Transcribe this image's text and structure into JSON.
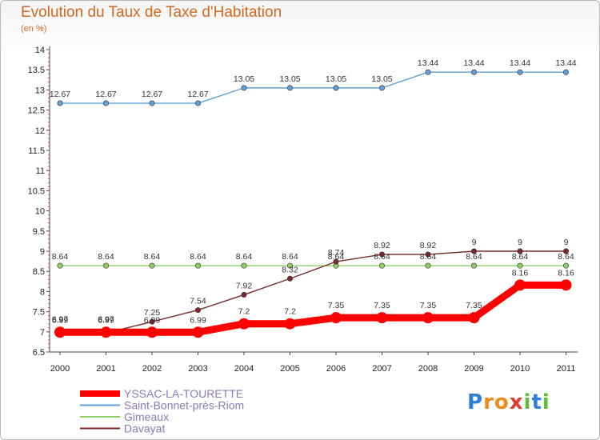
{
  "chart_data": {
    "type": "line",
    "title": "Evolution du Taux de Taxe d'Habitation",
    "subtitle": "(en %)",
    "x": [
      "2000",
      "2001",
      "2002",
      "2003",
      "2004",
      "2005",
      "2006",
      "2007",
      "2008",
      "2009",
      "2010",
      "2011"
    ],
    "yticks": [
      "6.5",
      "7",
      "7.5",
      "8",
      "8.5",
      "9",
      "9.5",
      "10",
      "10.5",
      "11",
      "11.5",
      "12",
      "12.5",
      "13",
      "13.5",
      "14"
    ],
    "ylim": [
      6.5,
      14
    ],
    "grid": false,
    "legend_position": "bottom-left",
    "series": [
      {
        "name": "YSSAC-LA-TOURETTE",
        "color": "#ff0000",
        "values": [
          6.99,
          6.99,
          6.99,
          6.99,
          7.2,
          7.2,
          7.35,
          7.35,
          7.35,
          7.35,
          8.16,
          8.16
        ],
        "labels": [
          "6.99",
          "6.99",
          "6.99",
          "6.99",
          "7.2",
          "7.2",
          "7.35",
          "7.35",
          "7.35",
          "7.35",
          "8.16",
          "8.16"
        ]
      },
      {
        "name": "Saint-Bonnet-près-Riom",
        "color": "#5fa0d8",
        "values": [
          12.67,
          12.67,
          12.67,
          12.67,
          13.05,
          13.05,
          13.05,
          13.05,
          13.44,
          13.44,
          13.44,
          13.44
        ],
        "labels": [
          "12.67",
          "12.67",
          "12.67",
          "12.67",
          "13.05",
          "13.05",
          "13.05",
          "13.05",
          "13.44",
          "13.44",
          "13.44",
          "13.44"
        ]
      },
      {
        "name": "Gimeaux",
        "color": "#8fd06a",
        "values": [
          8.64,
          8.64,
          8.64,
          8.64,
          8.64,
          8.64,
          8.64,
          8.64,
          8.64,
          8.64,
          8.64,
          8.64
        ],
        "labels": [
          "8.64",
          "8.64",
          "8.64",
          "8.64",
          "8.64",
          "8.64",
          "8.64",
          "8.64",
          "8.64",
          "8.64",
          "8.64",
          "8.64"
        ]
      },
      {
        "name": "Davayat",
        "color": "#7a2a2a",
        "values": [
          6.97,
          6.97,
          7.25,
          7.54,
          7.92,
          8.32,
          8.74,
          8.92,
          8.92,
          9,
          9,
          9
        ],
        "labels": [
          "6.97",
          "6.97",
          "7.25",
          "7.54",
          "7.92",
          "8.32",
          "8.74",
          "8.92",
          "8.92",
          "9",
          "9",
          "9"
        ]
      }
    ]
  },
  "logo": {
    "letters": [
      "P",
      "r",
      "o",
      "x",
      "i",
      "t",
      "i"
    ],
    "colors": [
      "#2e7fd6",
      "#f08a1c",
      "#f08a1c",
      "#e23b2b",
      "#5fbf3a",
      "#2e7fd6",
      "#5fbf3a"
    ]
  }
}
